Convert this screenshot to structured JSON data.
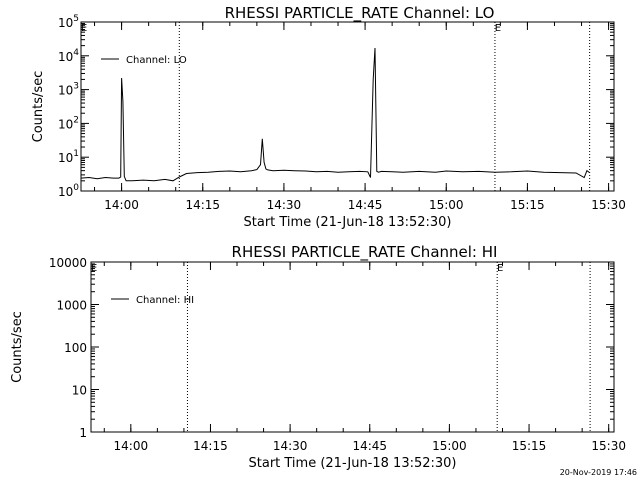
{
  "footer_stamp": "20-Nov-2019 17:46",
  "chart_data": [
    {
      "type": "line",
      "title": "RHESSI PARTICLE_RATE Channel: LO",
      "xlabel": "Start Time (21-Jun-18 13:52:30)",
      "ylabel": "Counts/sec",
      "y_scale": "log",
      "ylim": [
        1,
        100000
      ],
      "xlim": [
        "13:52:30",
        "15:31:00"
      ],
      "x_ticks": [
        "14:00",
        "14:15",
        "14:30",
        "14:45",
        "15:00",
        "15:15",
        "15:30"
      ],
      "y_ticks": [
        1,
        10,
        100,
        1000,
        10000,
        100000
      ],
      "y_tick_labels": [
        {
          "base": "10",
          "exp": "0"
        },
        {
          "base": "10",
          "exp": "1"
        },
        {
          "base": "10",
          "exp": "2"
        },
        {
          "base": "10",
          "exp": "3"
        },
        {
          "base": "10",
          "exp": "4"
        },
        {
          "base": "10",
          "exp": "5"
        }
      ],
      "legend": {
        "label": "Channel: LO",
        "placement": "top-left"
      },
      "markers": [
        {
          "time": "13:52:30",
          "label": "E"
        },
        {
          "time": "15:09:00",
          "label": "E"
        }
      ],
      "vlines": [
        "14:10:40",
        "15:09:00",
        "15:26:30"
      ],
      "series": [
        {
          "name": "Channel: LO",
          "x": [
            "13:52:30",
            "13:54:00",
            "13:55:30",
            "13:57:00",
            "13:58:30",
            "13:59:30",
            "13:59:50",
            "14:00:00",
            "14:00:15",
            "14:00:30",
            "14:00:50",
            "14:01:00",
            "14:02:00",
            "14:04:00",
            "14:06:00",
            "14:08:00",
            "14:09:30",
            "14:10:40",
            "14:12:00",
            "14:14:00",
            "14:16:00",
            "14:18:00",
            "14:20:00",
            "14:22:00",
            "14:24:00",
            "14:25:00",
            "14:25:40",
            "14:26:00",
            "14:26:20",
            "14:26:40",
            "14:27:00",
            "14:28:00",
            "14:30:00",
            "14:32:00",
            "14:34:00",
            "14:36:00",
            "14:38:00",
            "14:40:00",
            "14:42:00",
            "14:44:00",
            "14:45:30",
            "14:46:00",
            "14:46:30",
            "14:46:50",
            "14:47:10",
            "14:47:30",
            "14:48:00",
            "14:50:00",
            "14:52:00",
            "14:55:00",
            "14:58:00",
            "15:00:00",
            "15:03:00",
            "15:06:00",
            "15:09:00",
            "15:12:00",
            "15:15:00",
            "15:18:00",
            "15:21:00",
            "15:24:00",
            "15:25:30",
            "15:26:00",
            "15:26:30"
          ],
          "y": [
            2.4,
            2.5,
            2.3,
            2.5,
            2.4,
            2.4,
            2.6,
            2200,
            450,
            2.7,
            2.0,
            2.0,
            2.0,
            2.1,
            2.0,
            2.2,
            2.0,
            2.6,
            3.3,
            3.5,
            3.6,
            3.8,
            3.9,
            3.7,
            4.0,
            4.3,
            6,
            35,
            7,
            4.5,
            4.2,
            4.0,
            4.1,
            4.0,
            3.9,
            3.7,
            3.8,
            3.6,
            3.7,
            3.8,
            3.7,
            2.5,
            2000,
            17000,
            3.8,
            3.6,
            3.8,
            3.7,
            3.6,
            3.8,
            3.6,
            3.9,
            3.7,
            3.8,
            3.6,
            3.7,
            3.9,
            3.6,
            3.5,
            3.4,
            2.5,
            4.0,
            3.5
          ]
        }
      ]
    },
    {
      "type": "line",
      "title": "RHESSI PARTICLE_RATE Channel: HI",
      "xlabel": "Start Time (21-Jun-18 13:52:30)",
      "ylabel": "Counts/sec",
      "y_scale": "log",
      "ylim": [
        1,
        10000
      ],
      "xlim": [
        "13:52:30",
        "15:31:00"
      ],
      "x_ticks": [
        "14:00",
        "14:15",
        "14:30",
        "14:45",
        "15:00",
        "15:15",
        "15:30"
      ],
      "y_ticks": [
        1,
        10,
        100,
        1000,
        10000
      ],
      "y_tick_labels": [
        {
          "base": "1",
          "exp": ""
        },
        {
          "base": "10",
          "exp": ""
        },
        {
          "base": "100",
          "exp": ""
        },
        {
          "base": "1000",
          "exp": ""
        },
        {
          "base": "10000",
          "exp": ""
        }
      ],
      "legend": {
        "label": "Channel: HI",
        "placement": "top-left"
      },
      "markers": [
        {
          "time": "13:52:30",
          "label": "E"
        },
        {
          "time": "15:09:00",
          "label": "E"
        }
      ],
      "vlines": [
        "14:10:40",
        "15:09:00",
        "15:26:30"
      ],
      "series": [
        {
          "name": "Channel: HI",
          "x": [],
          "y": []
        }
      ]
    }
  ]
}
